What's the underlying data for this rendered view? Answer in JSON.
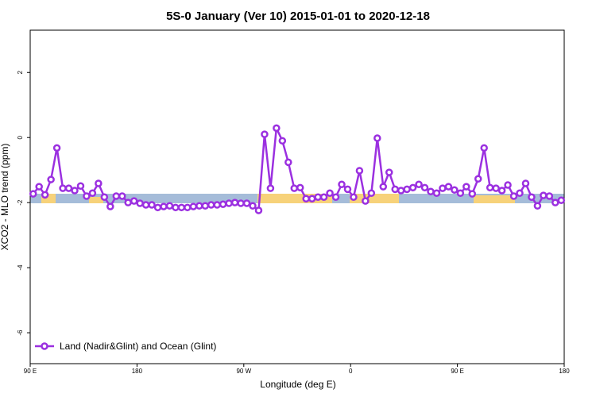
{
  "chart_data": {
    "type": "line",
    "title": "5S-0 January (Ver 10)   2015-01-01 to 2020-12-18",
    "x_label": "Longitude (deg E)",
    "y_label": "XCO2 - MLO trend (ppm)",
    "xlim": [
      90,
      540
    ],
    "ylim": [
      -6.95,
      3.3
    ],
    "xticks": [
      {
        "value": 90,
        "label": "90 E"
      },
      {
        "value": 180,
        "label": "180"
      },
      {
        "value": 270,
        "label": "90 W"
      },
      {
        "value": 360,
        "label": "0"
      },
      {
        "value": 450,
        "label": "90 E"
      },
      {
        "value": 540,
        "label": "180"
      }
    ],
    "yticks": [
      -6,
      -4,
      -2,
      0,
      2
    ],
    "legend": "bottom-left",
    "x": [
      92.5,
      97.5,
      102.5,
      107.5,
      112.5,
      117.5,
      122.5,
      127.5,
      132.5,
      137.5,
      142.5,
      147.5,
      152.5,
      157.5,
      162.5,
      167.5,
      172.5,
      177.5,
      182.5,
      187.5,
      192.5,
      197.5,
      202.5,
      207.5,
      212.5,
      217.5,
      222.5,
      227.5,
      232.5,
      237.5,
      242.5,
      247.5,
      252.5,
      257.5,
      262.5,
      267.5,
      272.5,
      277.5,
      282.5,
      287.5,
      292.5,
      297.5,
      302.5,
      307.5,
      312.5,
      317.5,
      322.5,
      327.5,
      332.5,
      337.5,
      342.5,
      347.5,
      352.5,
      357.5,
      362.5,
      367.5,
      372.5,
      377.5,
      382.5,
      387.5,
      392.5,
      397.5,
      402.5,
      407.5,
      412.5,
      417.5,
      422.5,
      427.5,
      432.5,
      437.5,
      442.5,
      447.5,
      452.5,
      457.5,
      462.5,
      467.5,
      472.5,
      477.5,
      482.5,
      487.5,
      492.5,
      497.5,
      502.5,
      507.5,
      512.5,
      517.5,
      522.5,
      527.5,
      532.5,
      537.5
    ],
    "series": [
      {
        "name": "Land (Nadir&Glint) and Ocean (Glint)",
        "color": "#9b30e0",
        "values": [
          -1.73,
          -1.51,
          -1.76,
          -1.29,
          -0.32,
          -1.56,
          -1.56,
          -1.63,
          -1.49,
          -1.8,
          -1.71,
          -1.41,
          -1.83,
          -2.12,
          -1.8,
          -1.8,
          -2.0,
          -1.95,
          -2.02,
          -2.07,
          -2.07,
          -2.15,
          -2.12,
          -2.1,
          -2.15,
          -2.15,
          -2.15,
          -2.12,
          -2.1,
          -2.1,
          -2.07,
          -2.07,
          -2.05,
          -2.02,
          -2.0,
          -2.02,
          -2.02,
          -2.1,
          -2.24,
          0.1,
          -1.56,
          0.29,
          -0.1,
          -0.76,
          -1.56,
          -1.54,
          -1.88,
          -1.88,
          -1.83,
          -1.83,
          -1.71,
          -1.83,
          -1.44,
          -1.59,
          -1.83,
          -1.02,
          -1.95,
          -1.71,
          -0.02,
          -1.51,
          -1.07,
          -1.59,
          -1.63,
          -1.59,
          -1.54,
          -1.44,
          -1.54,
          -1.66,
          -1.71,
          -1.56,
          -1.51,
          -1.61,
          -1.71,
          -1.51,
          -1.73,
          -1.27,
          -0.32,
          -1.54,
          -1.56,
          -1.63,
          -1.46,
          -1.8,
          -1.71,
          -1.41,
          -1.83,
          -2.1,
          -1.78,
          -1.8,
          -2.0,
          -1.93
        ]
      }
    ]
  }
}
